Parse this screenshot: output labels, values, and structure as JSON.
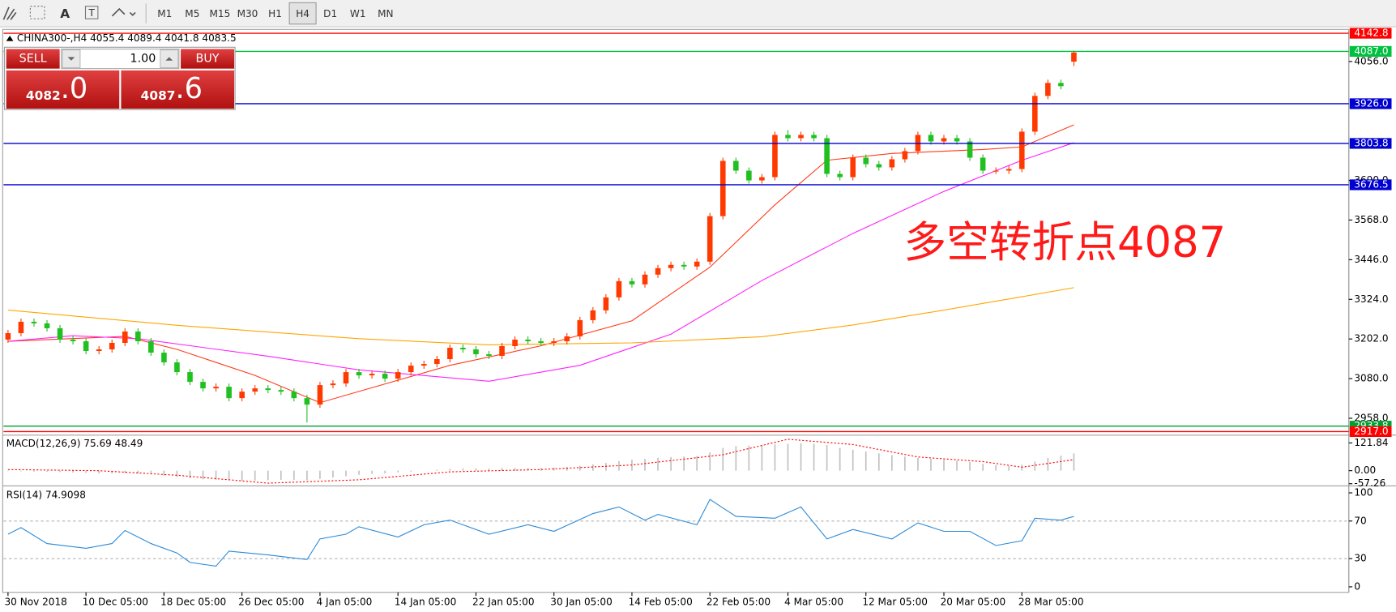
{
  "toolbar": {
    "timeframes": [
      "M1",
      "M5",
      "M15",
      "M30",
      "H1",
      "H4",
      "D1",
      "W1",
      "MN"
    ],
    "active": "H4"
  },
  "trade_panel": {
    "sell": "SELL",
    "lots": "1.00",
    "buy": "BUY",
    "bid_main": "4082",
    "bid_frac": ".0",
    "ask_main": "4087",
    "ask_frac": ".6"
  },
  "annotation": "多空转折点4087",
  "chart_data": [
    {
      "type": "candlestick",
      "title": "CHINA300-,H4  4055.4 4089.4 4041.8 4083.5",
      "open": [
        3200,
        3220,
        3255,
        3250,
        3235,
        3200,
        3195,
        3165,
        3170,
        3190,
        3225,
        3195,
        3160,
        3130,
        3100,
        3070,
        3050,
        3055,
        3020,
        3040,
        3050,
        3045,
        3040,
        3020,
        3000,
        3060,
        3065,
        3100,
        3090,
        3095,
        3080,
        3100,
        3120,
        3125,
        3140,
        3175,
        3170,
        3155,
        3150,
        3180,
        3200,
        3195,
        3190,
        3195,
        3210,
        3260,
        3290,
        3330,
        3380,
        3370,
        3400,
        3420,
        3430,
        3425,
        3440,
        3580,
        3750,
        3720,
        3690,
        3700,
        3830,
        3820,
        3830,
        3820,
        3710,
        3700,
        3760,
        3740,
        3730,
        3755,
        3780,
        3830,
        3810,
        3820,
        3810,
        3760,
        3720,
        3720,
        3725,
        3840,
        3950,
        3990,
        4055.4
      ],
      "high": [
        3230,
        3265,
        3265,
        3260,
        3245,
        3210,
        3205,
        3180,
        3200,
        3235,
        3235,
        3205,
        3170,
        3140,
        3110,
        3080,
        3065,
        3065,
        3050,
        3060,
        3060,
        3055,
        3050,
        3030,
        3070,
        3075,
        3110,
        3110,
        3105,
        3105,
        3110,
        3130,
        3135,
        3150,
        3185,
        3185,
        3180,
        3165,
        3190,
        3210,
        3210,
        3205,
        3205,
        3220,
        3270,
        3300,
        3340,
        3390,
        3390,
        3410,
        3430,
        3440,
        3440,
        3450,
        3590,
        3760,
        3760,
        3730,
        3710,
        3840,
        3845,
        3840,
        3840,
        3830,
        3720,
        3770,
        3770,
        3750,
        3765,
        3790,
        3840,
        3840,
        3830,
        3830,
        3820,
        3770,
        3730,
        3735,
        3850,
        3960,
        4000,
        4000,
        4089.4
      ],
      "low": [
        3190,
        3210,
        3240,
        3225,
        3190,
        3185,
        3155,
        3155,
        3160,
        3180,
        3185,
        3150,
        3120,
        3090,
        3060,
        3040,
        3040,
        3010,
        3010,
        3030,
        3035,
        3030,
        3010,
        2945,
        2990,
        3050,
        3055,
        3080,
        3080,
        3070,
        3070,
        3090,
        3110,
        3115,
        3130,
        3160,
        3145,
        3140,
        3140,
        3170,
        3185,
        3180,
        3180,
        3185,
        3200,
        3250,
        3280,
        3320,
        3360,
        3360,
        3390,
        3410,
        3415,
        3415,
        3430,
        3570,
        3710,
        3680,
        3680,
        3690,
        3810,
        3810,
        3810,
        3700,
        3690,
        3690,
        3730,
        3720,
        3720,
        3745,
        3770,
        3800,
        3800,
        3800,
        3750,
        3710,
        3710,
        3710,
        3715,
        3830,
        3940,
        3970,
        4041.8
      ],
      "close": [
        3220,
        3255,
        3250,
        3235,
        3200,
        3195,
        3165,
        3170,
        3190,
        3225,
        3195,
        3160,
        3130,
        3100,
        3070,
        3050,
        3055,
        3020,
        3040,
        3050,
        3045,
        3040,
        3020,
        3000,
        3060,
        3065,
        3100,
        3090,
        3095,
        3080,
        3100,
        3120,
        3125,
        3140,
        3175,
        3170,
        3155,
        3150,
        3180,
        3200,
        3195,
        3190,
        3195,
        3210,
        3260,
        3290,
        3330,
        3380,
        3370,
        3400,
        3420,
        3430,
        3425,
        3440,
        3580,
        3750,
        3720,
        3690,
        3700,
        3830,
        3820,
        3830,
        3820,
        3710,
        3700,
        3760,
        3740,
        3730,
        3755,
        3780,
        3830,
        3810,
        3820,
        3810,
        3760,
        3720,
        3720,
        3725,
        3840,
        3950,
        3990,
        3980,
        4083.5
      ],
      "up_color": "#ff3a00",
      "down_color": "#20c020",
      "lines": [
        {
          "color": "#ff3a1a",
          "x": [
            0,
            9,
            13,
            19,
            24,
            34,
            41,
            48,
            54,
            59,
            63,
            68,
            75,
            78,
            82
          ],
          "values": [
            3195,
            3210,
            3170,
            3090,
            3006,
            3121,
            3181,
            3258,
            3423,
            3615,
            3752,
            3773,
            3785,
            3793,
            3861
          ]
        },
        {
          "color": "#ff20ff",
          "x": [
            0,
            5,
            10,
            20,
            27,
            37,
            44,
            51,
            58,
            65,
            72,
            78,
            82
          ],
          "values": [
            3195,
            3212,
            3203,
            3149,
            3107,
            3072,
            3121,
            3217,
            3382,
            3527,
            3656,
            3752,
            3806
          ]
        },
        {
          "color": "#ffa500",
          "x": [
            0,
            13,
            27,
            37,
            48,
            58,
            65,
            72,
            78,
            82
          ],
          "values": [
            3291,
            3244,
            3203,
            3184,
            3190,
            3209,
            3245,
            3291,
            3332,
            3360
          ]
        }
      ],
      "levels": [
        {
          "value": 4142.8,
          "color": "#ff0000"
        },
        {
          "value": 4087,
          "label": "4087.0",
          "color": "#00c040"
        },
        {
          "value": 3926,
          "label": "3926.0",
          "color": "#0000d0"
        },
        {
          "value": 3803.8,
          "color": "#0000d0"
        },
        {
          "value": 3676.5,
          "color": "#0000d0"
        },
        {
          "value": 2933.8,
          "color": "#00a030"
        },
        {
          "value": 2917,
          "label": "2917.0",
          "color": "#ff0000"
        }
      ],
      "ylim": [
        2907.4,
        4154.6
      ],
      "yticks": [
        {
          "value": 2958,
          "label": "2958.0"
        },
        {
          "value": 3080,
          "label": "3080.0"
        },
        {
          "value": 3202,
          "label": "3202.0"
        },
        {
          "value": 3324,
          "label": "3324.0"
        },
        {
          "value": 3446,
          "label": "3446.0"
        },
        {
          "value": 3568,
          "label": "3568.0"
        },
        {
          "value": 3690,
          "label": "3690.0"
        },
        {
          "value": 4056,
          "label": "4056.0"
        }
      ],
      "xticks": [
        {
          "value": 0,
          "label": "30 Nov 2018"
        },
        {
          "value": 6,
          "label": "10 Dec 05:00"
        },
        {
          "value": 12,
          "label": "18 Dec 05:00"
        },
        {
          "value": 18,
          "label": "26 Dec 05:00"
        },
        {
          "value": 24,
          "label": "4 Jan 05:00"
        },
        {
          "value": 30,
          "label": "14 Jan 05:00"
        },
        {
          "value": 36,
          "label": "22 Jan 05:00"
        },
        {
          "value": 42,
          "label": "30 Jan 05:00"
        },
        {
          "value": 48,
          "label": "14 Feb 05:00"
        },
        {
          "value": 54,
          "label": "22 Feb 05:00"
        },
        {
          "value": 60,
          "label": "4 Mar 05:00"
        },
        {
          "value": 66,
          "label": "12 Mar 05:00"
        },
        {
          "value": 72,
          "label": "20 Mar 05:00"
        },
        {
          "value": 78,
          "label": "28 Mar 05:00"
        }
      ]
    },
    {
      "type": "macd",
      "title": "MACD(12,26,9) 75.69 48.49",
      "bar_color": "#c0c0c0",
      "values": [
        -2,
        -3,
        -4,
        -5,
        -6,
        -8,
        -10,
        -12,
        -12,
        -10,
        -12,
        -16,
        -22,
        -28,
        -34,
        -38,
        -40,
        -42,
        -44,
        -44,
        -42,
        -40,
        -40,
        -42,
        -36,
        -30,
        -24,
        -18,
        -14,
        -12,
        -8,
        -4,
        0,
        4,
        8,
        10,
        10,
        10,
        12,
        12,
        12,
        12,
        14,
        16,
        22,
        28,
        34,
        42,
        48,
        52,
        56,
        60,
        62,
        64,
        80,
        100,
        108,
        110,
        112,
        116,
        118,
        120,
        118,
        112,
        100,
        92,
        84,
        76,
        68,
        62,
        56,
        52,
        48,
        44,
        38,
        30,
        24,
        20,
        26,
        40,
        56,
        66,
        75.69
      ],
      "signal": {
        "color": "#ff0000",
        "x": [
          0,
          7,
          13,
          20,
          27,
          34,
          41,
          48,
          55,
          60,
          65,
          70,
          75,
          78,
          82
        ],
        "values": [
          5,
          0,
          -20,
          -55,
          -40,
          -5,
          5,
          25,
          70,
          138,
          115,
          60,
          40,
          15,
          48.49
        ]
      },
      "ylim": [
        -65,
        154
      ],
      "yticks": [
        -57.26,
        {
          "value": 0,
          "label": "0.00"
        },
        121.84
      ]
    },
    {
      "type": "line",
      "title": "RSI(14) 74.9098",
      "color": "#2a8ad8",
      "x": [
        0,
        1,
        3,
        6,
        8,
        9,
        11,
        13,
        14,
        16,
        17,
        20,
        23,
        24,
        26,
        27,
        30,
        32,
        34,
        37,
        40,
        42,
        45,
        47,
        49,
        50,
        53,
        54,
        56,
        59,
        61,
        63,
        65,
        68,
        70,
        72,
        74,
        76,
        78,
        79,
        81,
        82
      ],
      "values": [
        56,
        63,
        46,
        41,
        46,
        60,
        46,
        36,
        26,
        22,
        38,
        34,
        29,
        51,
        56,
        64,
        53,
        66,
        71,
        56,
        66,
        59,
        78,
        85,
        71,
        77,
        66,
        93,
        75,
        73,
        85,
        51,
        61,
        51,
        68,
        59,
        59,
        44,
        49,
        73,
        71,
        74.9098
      ],
      "levels": [
        30,
        70
      ],
      "ylim": [
        -5.9,
        106.9
      ],
      "yticks": [
        0,
        30,
        70,
        100
      ]
    }
  ]
}
